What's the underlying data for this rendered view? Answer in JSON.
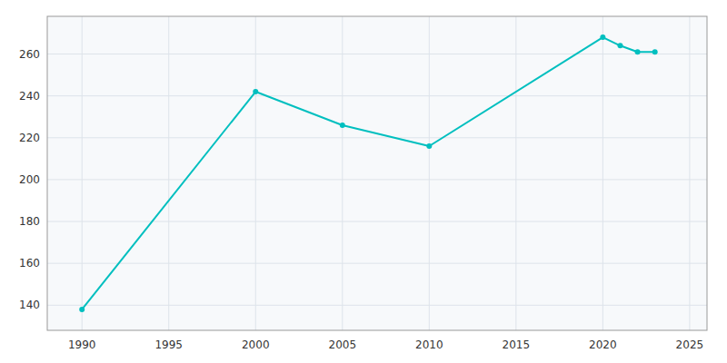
{
  "chart_data": {
    "type": "line",
    "x": [
      1990,
      2000,
      2005,
      2010,
      2020,
      2021,
      2022,
      2023
    ],
    "values": [
      138,
      242,
      226,
      216,
      268,
      264,
      261,
      261
    ],
    "color": "#00BFBF",
    "marker": "circle",
    "xlim": [
      1988,
      2026
    ],
    "ylim": [
      128,
      278
    ],
    "xticks": [
      1990,
      1995,
      2000,
      2005,
      2010,
      2015,
      2020,
      2025
    ],
    "yticks": [
      140,
      160,
      180,
      200,
      220,
      240,
      260
    ],
    "grid": true
  }
}
